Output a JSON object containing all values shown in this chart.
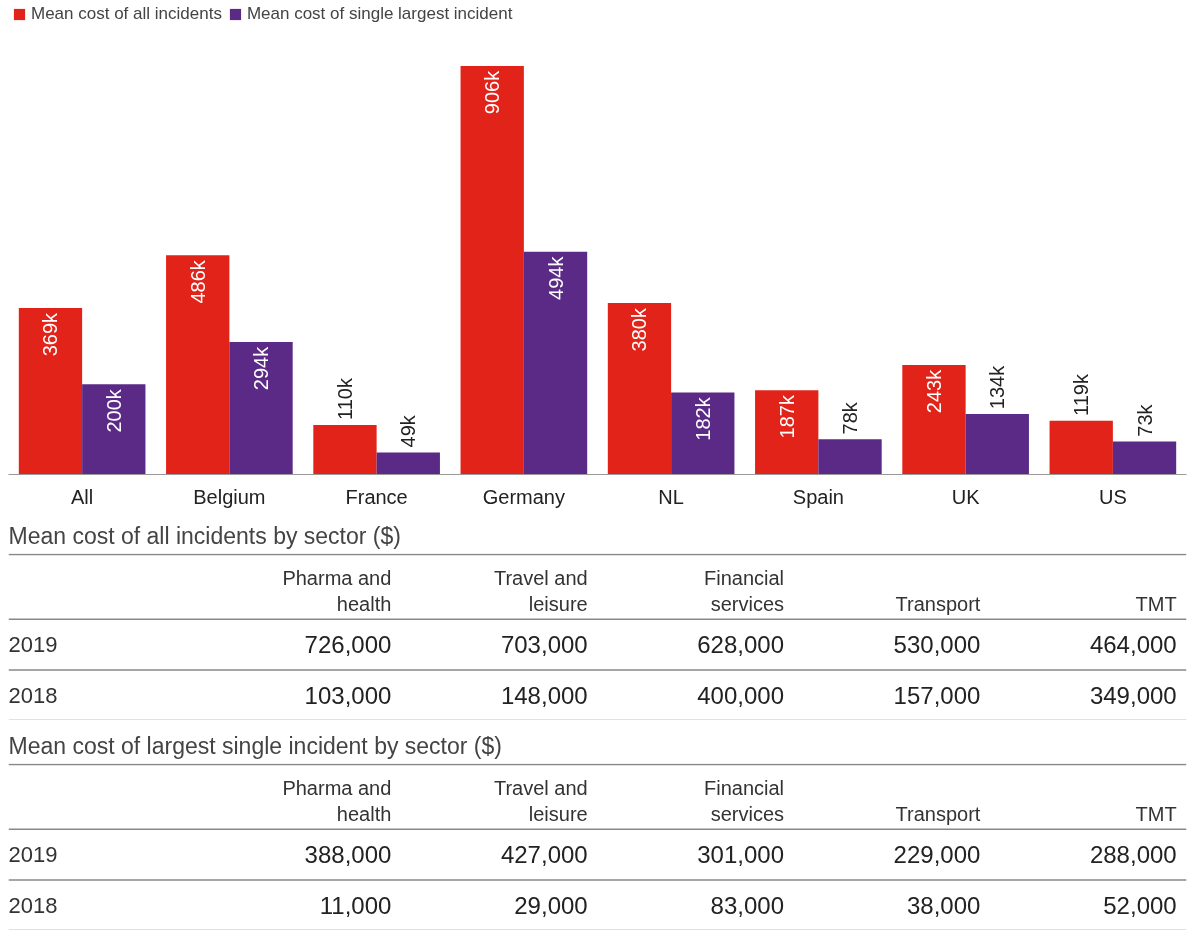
{
  "chart_data": [
    {
      "type": "bar",
      "categories": [
        "All",
        "Belgium",
        "France",
        "Germany",
        "NL",
        "Spain",
        "UK",
        "US"
      ],
      "legend": "top left",
      "series": [
        {
          "name": "Mean cost of all incidents",
          "color": "#e2231a",
          "values": [
            369000,
            486000,
            110000,
            906000,
            380000,
            187000,
            243000,
            119000
          ],
          "value_labels": [
            "369k",
            "486k",
            "110k",
            "906k",
            "380k",
            "187k",
            "243k",
            "119k"
          ]
        },
        {
          "name": "Mean cost of single largest incident",
          "color": "#5b2a86",
          "values": [
            200000,
            294000,
            49000,
            494000,
            182000,
            78000,
            134000,
            73000
          ],
          "value_labels": [
            "200k",
            "294k",
            "49k",
            "494k",
            "182k",
            "78k",
            "134k",
            "73k"
          ]
        }
      ]
    },
    {
      "type": "heatmap",
      "title": "Mean cost of all incidents by sector ($)",
      "categories": [
        "Pharma and health",
        "Travel and leisure",
        "Financial services",
        "Transport",
        "TMT"
      ],
      "y_categories": [
        "2019",
        "2018"
      ],
      "color": "#ffffff",
      "cells": [
        [
          726000,
          703000,
          628000,
          530000,
          464000
        ],
        [
          103000,
          148000,
          400000,
          157000,
          349000
        ]
      ],
      "cell_labels": [
        [
          "726,000",
          "703,000",
          "628,000",
          "530,000",
          "464,000"
        ],
        [
          "103,000",
          "148,000",
          "400,000",
          "157,000",
          "349,000"
        ]
      ]
    },
    {
      "type": "heatmap",
      "title": "Mean cost of largest single incident by sector ($)",
      "categories": [
        "Pharma and health",
        "Travel and leisure",
        "Financial services",
        "Transport",
        "TMT"
      ],
      "y_categories": [
        "2019",
        "2018"
      ],
      "color": "#ffffff",
      "cells": [
        [
          388000,
          427000,
          301000,
          229000,
          288000
        ],
        [
          11000,
          29000,
          83000,
          38000,
          52000
        ]
      ],
      "cell_labels": [
        [
          "388,000",
          "427,000",
          "301,000",
          "229,000",
          "288,000"
        ],
        [
          "11,000",
          "29,000",
          "83,000",
          "38,000",
          "52,000"
        ]
      ]
    }
  ]
}
